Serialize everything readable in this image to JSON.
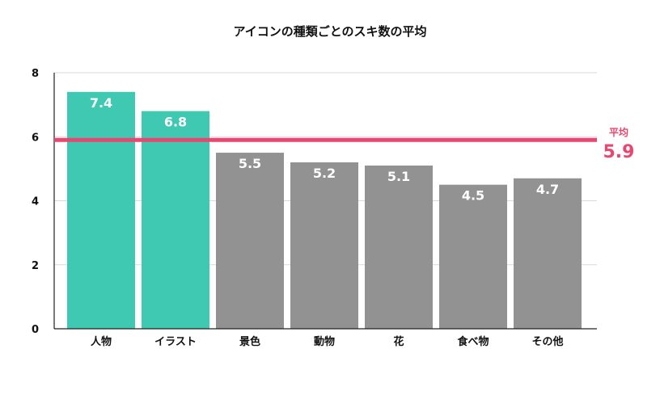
{
  "chart_data": {
    "type": "bar",
    "title": "アイコンの種類ごとのスキ数の平均",
    "xlabel": "",
    "ylabel": "",
    "categories": [
      "人物",
      "イラスト",
      "景色",
      "動物",
      "花",
      "食べ物",
      "その他"
    ],
    "values": [
      7.4,
      6.8,
      5.5,
      5.2,
      5.1,
      4.5,
      4.7
    ],
    "data_labels": [
      "7.4",
      "6.8",
      "5.5",
      "5.2",
      "5.1",
      "4.5",
      "4.7"
    ],
    "highlighted": [
      true,
      true,
      false,
      false,
      false,
      false,
      false
    ],
    "ylim": [
      0,
      8
    ],
    "yticks": [
      "0",
      "2",
      "4",
      "6",
      "8"
    ],
    "grid": true,
    "reference_line": {
      "label": "平均",
      "value_label": "5.9",
      "value": 5.9
    },
    "colors": {
      "highlight": "#40c9b2",
      "normal": "#929292",
      "reference": "#e8476f",
      "grid": "#d9d9d9",
      "axis": "#222222"
    }
  }
}
